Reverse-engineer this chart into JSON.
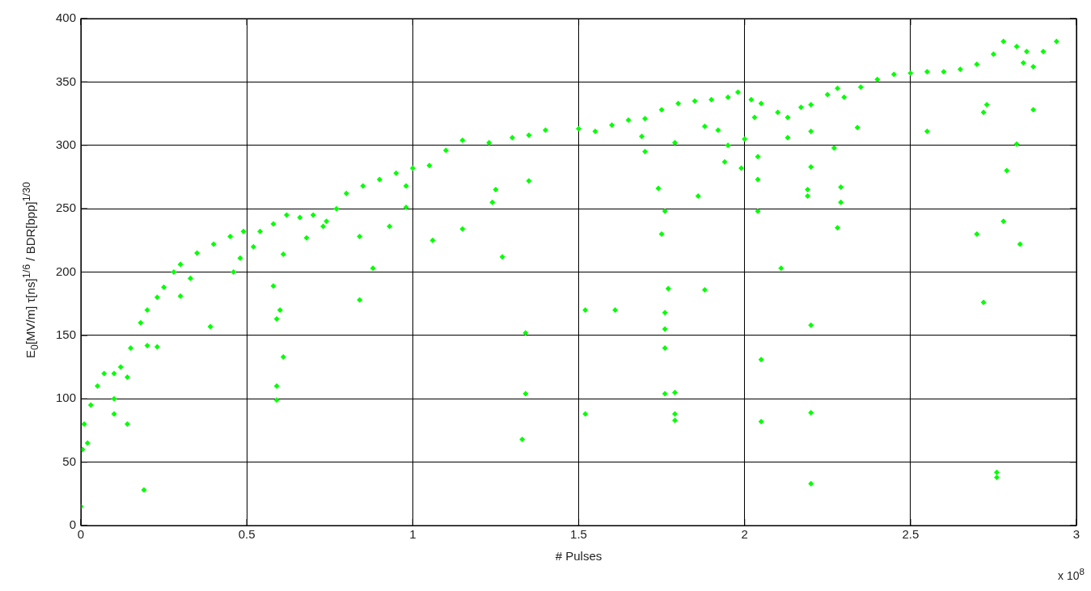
{
  "chart_data": {
    "type": "scatter",
    "xlabel": "# Pulses",
    "ylabel": "E$_{0}$[MV/m] τ[ns]$^{1/6}$ / BDR[bpp]$^{1/30}$",
    "annotations": [
      "x 10$^{8}$"
    ],
    "xlim": [
      0,
      3
    ],
    "xticks": [
      0,
      0.5,
      1,
      1.5,
      2,
      2.5,
      3
    ],
    "ylim": [
      0,
      400
    ],
    "yticks": [
      0,
      50,
      100,
      150,
      200,
      250,
      300,
      350,
      400
    ],
    "grid": true,
    "marker": "diamond",
    "legend": false,
    "series": [
      {
        "color": "#00ff00",
        "x": [
          0,
          0.005,
          0.01,
          0.03,
          0.05,
          0.07,
          0.1,
          0.12,
          0.15,
          0.18,
          0.2,
          0.23,
          0.25,
          0.28,
          0.3,
          0.35,
          0.4,
          0.45,
          0.49,
          0.52,
          0.54,
          0.58,
          0.62,
          0.66,
          0.7,
          0.74,
          0.77,
          0.8,
          0.85,
          0.9,
          0.95,
          1.0,
          1.05,
          1.1,
          1.15,
          1.23,
          1.3,
          1.35,
          1.4,
          1.5,
          1.55,
          1.6,
          1.65,
          1.7,
          1.75,
          1.8,
          1.85,
          1.9,
          1.95,
          1.98,
          2.02,
          2.05,
          2.1,
          2.13,
          2.17,
          2.2,
          2.25,
          2.28,
          2.3,
          2.35,
          2.4,
          2.45,
          2.5,
          2.55,
          2.6,
          2.65,
          2.7,
          2.75,
          2.78,
          2.82,
          2.85,
          2.87,
          2.9,
          2.94,
          0.19,
          0.02,
          0.1,
          0.14,
          0.1,
          0.14,
          0.2,
          0.23,
          0.3,
          0.33,
          0.39,
          0.46,
          0.48,
          0.58,
          0.59,
          0.6,
          0.59,
          0.59,
          0.61,
          0.61,
          0.68,
          0.73,
          0.84,
          0.84,
          0.88,
          0.93,
          0.98,
          0.98,
          1.06,
          1.15,
          1.24,
          1.25,
          1.27,
          1.34,
          1.34,
          1.33,
          1.35,
          1.52,
          1.52,
          1.61,
          1.69,
          1.7,
          1.74,
          1.75,
          1.76,
          1.77,
          1.76,
          1.76,
          1.76,
          1.76,
          1.79,
          1.79,
          1.79,
          1.79,
          1.86,
          1.88,
          1.88,
          1.92,
          1.94,
          1.95,
          1.99,
          2.0,
          2.03,
          2.04,
          2.04,
          2.04,
          2.05,
          2.05,
          2.11,
          2.13,
          2.19,
          2.19,
          2.2,
          2.2,
          2.2,
          2.2,
          2.2,
          2.27,
          2.28,
          2.29,
          2.29,
          2.34,
          2.55,
          2.7,
          2.72,
          2.72,
          2.73,
          2.76,
          2.76,
          2.78,
          2.79,
          2.82,
          2.83,
          2.87,
          2.84
        ],
        "values": [
          15,
          60,
          80,
          95,
          110,
          120,
          120,
          125,
          140,
          160,
          170,
          180,
          188,
          200,
          206,
          215,
          222,
          228,
          232,
          220,
          232,
          238,
          245,
          243,
          245,
          240,
          250,
          262,
          268,
          273,
          278,
          282,
          284,
          296,
          304,
          302,
          306,
          308,
          312,
          313,
          311,
          316,
          320,
          321,
          328,
          333,
          335,
          336,
          338,
          342,
          336,
          333,
          326,
          322,
          330,
          332,
          340,
          345,
          338,
          346,
          352,
          356,
          357,
          358,
          358,
          360,
          364,
          372,
          382,
          378,
          374,
          362,
          374,
          382,
          28,
          65,
          88,
          80,
          100,
          117,
          142,
          141,
          181,
          195,
          157,
          200,
          211,
          189,
          163,
          170,
          110,
          99,
          133,
          214,
          227,
          236,
          228,
          178,
          203,
          236,
          251,
          268,
          225,
          234,
          255,
          265,
          212,
          152,
          104,
          68,
          272,
          170,
          88,
          170,
          307,
          295,
          266,
          230,
          248,
          187,
          168,
          155,
          140,
          104,
          105,
          88,
          83,
          302,
          260,
          186,
          315,
          312,
          287,
          300,
          282,
          305,
          322,
          291,
          273,
          248,
          131,
          82,
          203,
          306,
          260,
          265,
          283,
          311,
          158,
          89,
          33,
          298,
          235,
          255,
          267,
          314,
          311,
          230,
          326,
          176,
          332,
          42,
          38,
          240,
          280,
          301,
          222,
          328,
          365
        ]
      }
    ]
  }
}
